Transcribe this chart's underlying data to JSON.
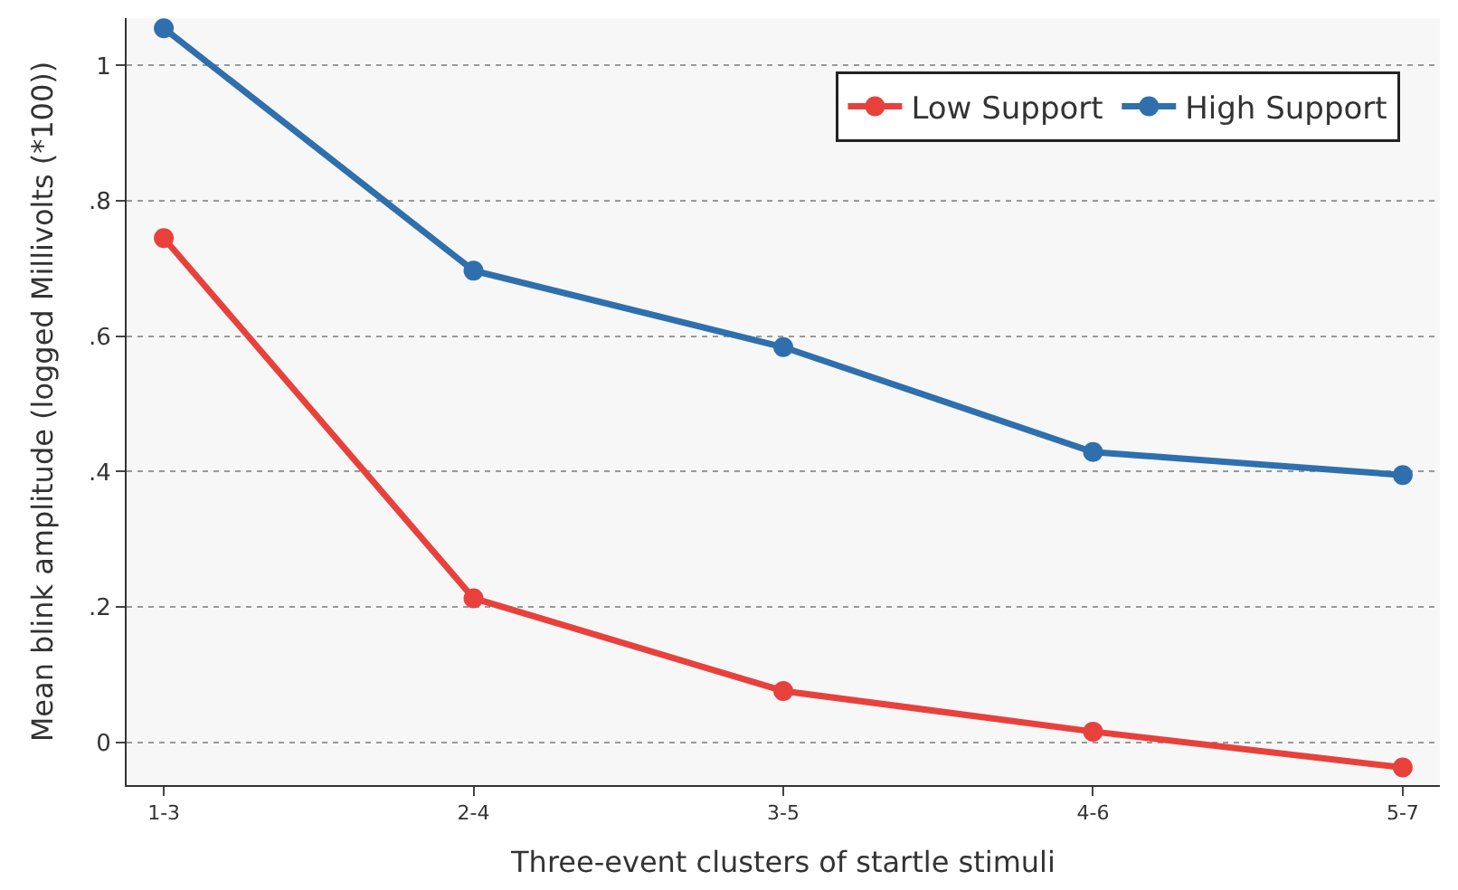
{
  "chart_data": {
    "type": "line",
    "xlabel": "Three-event clusters of startle stimuli",
    "ylabel": "Mean blink amplitude (logged Millivolts (*100))",
    "categories": [
      "1-3",
      "2-4",
      "3-5",
      "4-6",
      "5-7"
    ],
    "series": [
      {
        "name": "Low Support",
        "color": "#e8413c",
        "values": [
          0.745,
          0.213,
          0.076,
          0.016,
          -0.037
        ]
      },
      {
        "name": "High Support",
        "color": "#2f6fad",
        "values": [
          1.055,
          0.697,
          0.584,
          0.429,
          0.395
        ]
      }
    ],
    "ylim": [
      -0.063,
      1.07
    ],
    "yticks": [
      0,
      {
        "value": 0.2,
        "label": ".2"
      },
      {
        "value": 0.4,
        "label": ".4"
      },
      {
        "value": 0.6,
        "label": ".6"
      },
      {
        "value": 0.8,
        "label": ".8"
      },
      1
    ],
    "grid": "y",
    "legend": "top right",
    "marker": "circle",
    "line_style": "solid"
  }
}
